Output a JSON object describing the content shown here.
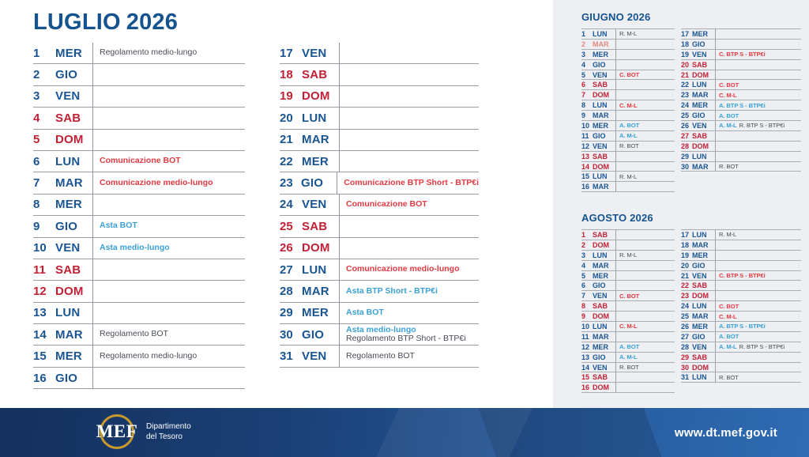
{
  "title": {
    "month": "LUGLIO",
    "year": "2026"
  },
  "colors": {
    "title_blue": "#15538f",
    "day_weekday": "#1a5592",
    "day_weekend": "#c22035",
    "day_holiday": "#e28a7e",
    "event_comunicazione": "#e23a42",
    "event_asta": "#3ba1d6",
    "event_regolamento": "#474c55",
    "panel_background": "#edeff2",
    "footer_blue_dark": "#14305c",
    "footer_blue_light": "#2f6cb3",
    "logo_gold": "#c79a2e"
  },
  "main_calendar": {
    "left": [
      {
        "day": 1,
        "name": "MER",
        "type": "weekday",
        "events": [
          {
            "label": "Regolamento medio-lungo",
            "kind": "regolamento"
          }
        ]
      },
      {
        "day": 2,
        "name": "GIO",
        "type": "weekday",
        "events": []
      },
      {
        "day": 3,
        "name": "VEN",
        "type": "weekday",
        "events": []
      },
      {
        "day": 4,
        "name": "SAB",
        "type": "weekend",
        "events": []
      },
      {
        "day": 5,
        "name": "DOM",
        "type": "weekend",
        "events": []
      },
      {
        "day": 6,
        "name": "LUN",
        "type": "weekday",
        "events": [
          {
            "label": "Comunicazione BOT",
            "kind": "comunicazione"
          }
        ]
      },
      {
        "day": 7,
        "name": "MAR",
        "type": "weekday",
        "events": [
          {
            "label": "Comunicazione medio-lungo",
            "kind": "comunicazione"
          }
        ]
      },
      {
        "day": 8,
        "name": "MER",
        "type": "weekday",
        "events": []
      },
      {
        "day": 9,
        "name": "GIO",
        "type": "weekday",
        "events": [
          {
            "label": "Asta BOT",
            "kind": "asta"
          }
        ]
      },
      {
        "day": 10,
        "name": "VEN",
        "type": "weekday",
        "events": [
          {
            "label": "Asta medio-lungo",
            "kind": "asta"
          }
        ]
      },
      {
        "day": 11,
        "name": "SAB",
        "type": "weekend",
        "events": []
      },
      {
        "day": 12,
        "name": "DOM",
        "type": "weekend",
        "events": []
      },
      {
        "day": 13,
        "name": "LUN",
        "type": "weekday",
        "events": []
      },
      {
        "day": 14,
        "name": "MAR",
        "type": "weekday",
        "events": [
          {
            "label": "Regolamento BOT",
            "kind": "regolamento"
          }
        ]
      },
      {
        "day": 15,
        "name": "MER",
        "type": "weekday",
        "events": [
          {
            "label": "Regolamento medio-lungo",
            "kind": "regolamento"
          }
        ]
      },
      {
        "day": 16,
        "name": "GIO",
        "type": "weekday",
        "events": []
      }
    ],
    "right": [
      {
        "day": 17,
        "name": "VEN",
        "type": "weekday",
        "events": []
      },
      {
        "day": 18,
        "name": "SAB",
        "type": "weekend",
        "events": []
      },
      {
        "day": 19,
        "name": "DOM",
        "type": "weekend",
        "events": []
      },
      {
        "day": 20,
        "name": "LUN",
        "type": "weekday",
        "events": []
      },
      {
        "day": 21,
        "name": "MAR",
        "type": "weekday",
        "events": []
      },
      {
        "day": 22,
        "name": "MER",
        "type": "weekday",
        "events": []
      },
      {
        "day": 23,
        "name": "GIO",
        "type": "weekday",
        "events": [
          {
            "label": "Comunicazione BTP Short - BTP€i",
            "kind": "comunicazione"
          }
        ]
      },
      {
        "day": 24,
        "name": "VEN",
        "type": "weekday",
        "events": [
          {
            "label": "Comunicazione BOT",
            "kind": "comunicazione"
          }
        ]
      },
      {
        "day": 25,
        "name": "SAB",
        "type": "weekend",
        "events": []
      },
      {
        "day": 26,
        "name": "DOM",
        "type": "weekend",
        "events": []
      },
      {
        "day": 27,
        "name": "LUN",
        "type": "weekday",
        "events": [
          {
            "label": "Comunicazione medio-lungo",
            "kind": "comunicazione"
          }
        ]
      },
      {
        "day": 28,
        "name": "MAR",
        "type": "weekday",
        "events": [
          {
            "label": "Asta BTP Short - BTP€i",
            "kind": "asta"
          }
        ]
      },
      {
        "day": 29,
        "name": "MER",
        "type": "weekday",
        "events": [
          {
            "label": "Asta BOT",
            "kind": "asta"
          }
        ]
      },
      {
        "day": 30,
        "name": "GIO",
        "type": "weekday",
        "events": [
          {
            "label": "Asta medio-lungo",
            "kind": "asta"
          },
          {
            "label": "Regolamento BTP Short - BTP€i",
            "kind": "regolamento"
          }
        ]
      },
      {
        "day": 31,
        "name": "VEN",
        "type": "weekday",
        "events": [
          {
            "label": "Regolamento BOT",
            "kind": "regolamento"
          }
        ]
      }
    ]
  },
  "mini_calendars": [
    {
      "title": "GIUGNO 2026",
      "left": [
        {
          "day": 1,
          "name": "LUN",
          "type": "weekday",
          "events": [
            {
              "label": "R. M-L",
              "kind": "regolamento"
            }
          ]
        },
        {
          "day": 2,
          "name": "MAR",
          "type": "holiday",
          "events": []
        },
        {
          "day": 3,
          "name": "MER",
          "type": "weekday",
          "events": []
        },
        {
          "day": 4,
          "name": "GIO",
          "type": "weekday",
          "events": []
        },
        {
          "day": 5,
          "name": "VEN",
          "type": "weekday",
          "events": [
            {
              "label": "C. BOT",
              "kind": "comunicazione"
            }
          ]
        },
        {
          "day": 6,
          "name": "SAB",
          "type": "weekend",
          "events": []
        },
        {
          "day": 7,
          "name": "DOM",
          "type": "weekend",
          "events": []
        },
        {
          "day": 8,
          "name": "LUN",
          "type": "weekday",
          "events": [
            {
              "label": "C. M-L",
              "kind": "comunicazione"
            }
          ]
        },
        {
          "day": 9,
          "name": "MAR",
          "type": "weekday",
          "events": []
        },
        {
          "day": 10,
          "name": "MER",
          "type": "weekday",
          "events": [
            {
              "label": "A. BOT",
              "kind": "asta"
            }
          ]
        },
        {
          "day": 11,
          "name": "GIO",
          "type": "weekday",
          "events": [
            {
              "label": "A. M-L",
              "kind": "asta"
            }
          ]
        },
        {
          "day": 12,
          "name": "VEN",
          "type": "weekday",
          "events": [
            {
              "label": "R. BOT",
              "kind": "regolamento"
            }
          ]
        },
        {
          "day": 13,
          "name": "SAB",
          "type": "weekend",
          "events": []
        },
        {
          "day": 14,
          "name": "DOM",
          "type": "weekend",
          "events": []
        },
        {
          "day": 15,
          "name": "LUN",
          "type": "weekday",
          "events": [
            {
              "label": "R. M-L",
              "kind": "regolamento"
            }
          ]
        },
        {
          "day": 16,
          "name": "MAR",
          "type": "weekday",
          "events": []
        }
      ],
      "right": [
        {
          "day": 17,
          "name": "MER",
          "type": "weekday",
          "events": []
        },
        {
          "day": 18,
          "name": "GIO",
          "type": "weekday",
          "events": []
        },
        {
          "day": 19,
          "name": "VEN",
          "type": "weekday",
          "events": [
            {
              "label": "C. BTP S - BTP€i",
              "kind": "comunicazione"
            }
          ]
        },
        {
          "day": 20,
          "name": "SAB",
          "type": "weekend",
          "events": []
        },
        {
          "day": 21,
          "name": "DOM",
          "type": "weekend",
          "events": []
        },
        {
          "day": 22,
          "name": "LUN",
          "type": "weekday",
          "events": [
            {
              "label": "C. BOT",
              "kind": "comunicazione"
            }
          ]
        },
        {
          "day": 23,
          "name": "MAR",
          "type": "weekday",
          "events": [
            {
              "label": "C. M-L",
              "kind": "comunicazione"
            }
          ]
        },
        {
          "day": 24,
          "name": "MER",
          "type": "weekday",
          "events": [
            {
              "label": "A. BTP S - BTP€i",
              "kind": "asta"
            }
          ]
        },
        {
          "day": 25,
          "name": "GIO",
          "type": "weekday",
          "events": [
            {
              "label": "A. BOT",
              "kind": "asta"
            }
          ]
        },
        {
          "day": 26,
          "name": "VEN",
          "type": "weekday",
          "events": [
            {
              "label": "A. M-L",
              "kind": "asta"
            },
            {
              "label": "R. BTP S - BTP€i",
              "kind": "regolamento"
            }
          ]
        },
        {
          "day": 27,
          "name": "SAB",
          "type": "weekend",
          "events": []
        },
        {
          "day": 28,
          "name": "DOM",
          "type": "weekend",
          "events": []
        },
        {
          "day": 29,
          "name": "LUN",
          "type": "weekday",
          "events": []
        },
        {
          "day": 30,
          "name": "MAR",
          "type": "weekday",
          "events": [
            {
              "label": "R. BOT",
              "kind": "regolamento"
            }
          ]
        }
      ]
    },
    {
      "title": "AGOSTO 2026",
      "left": [
        {
          "day": 1,
          "name": "SAB",
          "type": "weekend",
          "events": []
        },
        {
          "day": 2,
          "name": "DOM",
          "type": "weekend",
          "events": []
        },
        {
          "day": 3,
          "name": "LUN",
          "type": "weekday",
          "events": [
            {
              "label": "R. M-L",
              "kind": "regolamento"
            }
          ]
        },
        {
          "day": 4,
          "name": "MAR",
          "type": "weekday",
          "events": []
        },
        {
          "day": 5,
          "name": "MER",
          "type": "weekday",
          "events": []
        },
        {
          "day": 6,
          "name": "GIO",
          "type": "weekday",
          "events": []
        },
        {
          "day": 7,
          "name": "VEN",
          "type": "weekday",
          "events": [
            {
              "label": "C. BOT",
              "kind": "comunicazione"
            }
          ]
        },
        {
          "day": 8,
          "name": "SAB",
          "type": "weekend",
          "events": []
        },
        {
          "day": 9,
          "name": "DOM",
          "type": "weekend",
          "events": []
        },
        {
          "day": 10,
          "name": "LUN",
          "type": "weekday",
          "events": [
            {
              "label": "C. M-L",
              "kind": "comunicazione"
            }
          ]
        },
        {
          "day": 11,
          "name": "MAR",
          "type": "weekday",
          "events": []
        },
        {
          "day": 12,
          "name": "MER",
          "type": "weekday",
          "events": [
            {
              "label": "A. BOT",
              "kind": "asta"
            }
          ]
        },
        {
          "day": 13,
          "name": "GIO",
          "type": "weekday",
          "events": [
            {
              "label": "A. M-L",
              "kind": "asta"
            }
          ]
        },
        {
          "day": 14,
          "name": "VEN",
          "type": "weekday",
          "events": [
            {
              "label": "R. BOT",
              "kind": "regolamento"
            }
          ]
        },
        {
          "day": 15,
          "name": "SAB",
          "type": "weekend",
          "events": []
        },
        {
          "day": 16,
          "name": "DOM",
          "type": "weekend",
          "events": []
        }
      ],
      "right": [
        {
          "day": 17,
          "name": "LUN",
          "type": "weekday",
          "events": [
            {
              "label": "R. M-L",
              "kind": "regolamento"
            }
          ]
        },
        {
          "day": 18,
          "name": "MAR",
          "type": "weekday",
          "events": []
        },
        {
          "day": 19,
          "name": "MER",
          "type": "weekday",
          "events": []
        },
        {
          "day": 20,
          "name": "GIO",
          "type": "weekday",
          "events": []
        },
        {
          "day": 21,
          "name": "VEN",
          "type": "weekday",
          "events": [
            {
              "label": "C. BTP S - BTP€i",
              "kind": "comunicazione"
            }
          ]
        },
        {
          "day": 22,
          "name": "SAB",
          "type": "weekend",
          "events": []
        },
        {
          "day": 23,
          "name": "DOM",
          "type": "weekend",
          "events": []
        },
        {
          "day": 24,
          "name": "LUN",
          "type": "weekday",
          "events": [
            {
              "label": "C. BOT",
              "kind": "comunicazione"
            }
          ]
        },
        {
          "day": 25,
          "name": "MAR",
          "type": "weekday",
          "events": [
            {
              "label": "C. M-L",
              "kind": "comunicazione"
            }
          ]
        },
        {
          "day": 26,
          "name": "MER",
          "type": "weekday",
          "events": [
            {
              "label": "A. BTP S - BTP€i",
              "kind": "asta"
            }
          ]
        },
        {
          "day": 27,
          "name": "GIO",
          "type": "weekday",
          "events": [
            {
              "label": "A. BOT",
              "kind": "asta"
            }
          ]
        },
        {
          "day": 28,
          "name": "VEN",
          "type": "weekday",
          "events": [
            {
              "label": "A. M-L",
              "kind": "asta"
            },
            {
              "label": "R. BTP S - BTP€i",
              "kind": "regolamento"
            }
          ]
        },
        {
          "day": 29,
          "name": "SAB",
          "type": "weekend",
          "events": []
        },
        {
          "day": 30,
          "name": "DOM",
          "type": "weekend",
          "events": []
        },
        {
          "day": 31,
          "name": "LUN",
          "type": "weekday",
          "events": [
            {
              "label": "R. BOT",
              "kind": "regolamento"
            }
          ]
        }
      ]
    }
  ],
  "footer": {
    "logo_acronym": "MEF",
    "department_line1": "Dipartimento",
    "department_line2": "del Tesoro",
    "website": "www.dt.mef.gov.it"
  }
}
